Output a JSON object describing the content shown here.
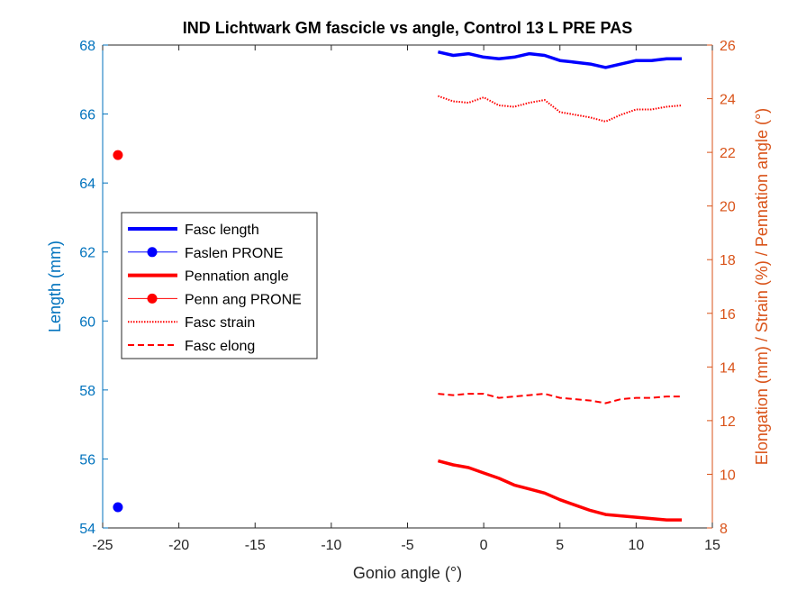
{
  "chart_data": {
    "type": "line",
    "title": "IND Lichtwark GM fascicle vs angle, Control 13 L PRE PAS",
    "xlabel": "Gonio angle (°)",
    "ylabel_left": "Length (mm)",
    "ylabel_right": "Elongation (mm) / Strain (%) / Pennation angle (°)",
    "xlim": [
      -25,
      15
    ],
    "ylim_left": [
      54,
      68
    ],
    "ylim_right": [
      8,
      26
    ],
    "x_ticks": [
      "-25",
      "-20",
      "-15",
      "-10",
      "-5",
      "0",
      "5",
      "10",
      "15"
    ],
    "y_left_ticks": [
      "54",
      "56",
      "58",
      "60",
      "62",
      "64",
      "66",
      "68"
    ],
    "y_right_ticks": [
      "8",
      "10",
      "12",
      "14",
      "16",
      "18",
      "20",
      "22",
      "24",
      "26"
    ],
    "colors": {
      "left_axis": "#0072BD",
      "right_axis": "#D95319",
      "fasc_length": "#0000FF",
      "red_series": "#FF0000"
    },
    "legend": {
      "placement": "middle-left",
      "entries": [
        "Fasc length",
        "Faslen PRONE",
        "Pennation angle",
        "Penn ang PRONE",
        "Fasc strain",
        "Fasc elong"
      ]
    },
    "series": [
      {
        "name": "Fasc length",
        "axis": "left",
        "style": "solid-thick",
        "x": [
          -3,
          -2,
          -1,
          0,
          1,
          2,
          3,
          4,
          5,
          6,
          7,
          8,
          9,
          10,
          11,
          12,
          13
        ],
        "y": [
          67.8,
          67.7,
          67.75,
          67.65,
          67.6,
          67.65,
          67.75,
          67.7,
          67.55,
          67.5,
          67.45,
          67.35,
          67.45,
          67.55,
          67.55,
          67.6,
          67.6
        ]
      },
      {
        "name": "Faslen PRONE",
        "axis": "left",
        "style": "marker",
        "x": [
          -24
        ],
        "y": [
          54.6
        ]
      },
      {
        "name": "Pennation angle",
        "axis": "right",
        "style": "solid-thick",
        "x": [
          -3,
          -2,
          -1,
          0,
          1,
          2,
          3,
          4,
          5,
          6,
          7,
          8,
          9,
          10,
          11,
          12,
          13
        ],
        "y": [
          10.5,
          10.35,
          10.25,
          10.05,
          9.85,
          9.6,
          9.45,
          9.3,
          9.05,
          8.85,
          8.65,
          8.5,
          8.45,
          8.4,
          8.35,
          8.3,
          8.3
        ]
      },
      {
        "name": "Penn ang PRONE",
        "axis": "right",
        "style": "marker",
        "x": [
          -24
        ],
        "y": [
          21.9
        ]
      },
      {
        "name": "Fasc strain",
        "axis": "right",
        "style": "dotted",
        "x": [
          -3,
          -2,
          -1,
          0,
          1,
          2,
          3,
          4,
          5,
          6,
          7,
          8,
          9,
          10,
          11,
          12,
          13
        ],
        "y": [
          24.1,
          23.9,
          23.85,
          24.05,
          23.75,
          23.7,
          23.85,
          23.95,
          23.5,
          23.4,
          23.3,
          23.15,
          23.4,
          23.6,
          23.6,
          23.7,
          23.75
        ]
      },
      {
        "name": "Fasc elong",
        "axis": "right",
        "style": "dashed",
        "x": [
          -3,
          -2,
          -1,
          0,
          1,
          2,
          3,
          4,
          5,
          6,
          7,
          8,
          9,
          10,
          11,
          12,
          13
        ],
        "y": [
          13.0,
          12.95,
          13.0,
          13.0,
          12.85,
          12.9,
          12.95,
          13.0,
          12.85,
          12.8,
          12.75,
          12.65,
          12.8,
          12.85,
          12.85,
          12.9,
          12.9
        ]
      }
    ]
  }
}
